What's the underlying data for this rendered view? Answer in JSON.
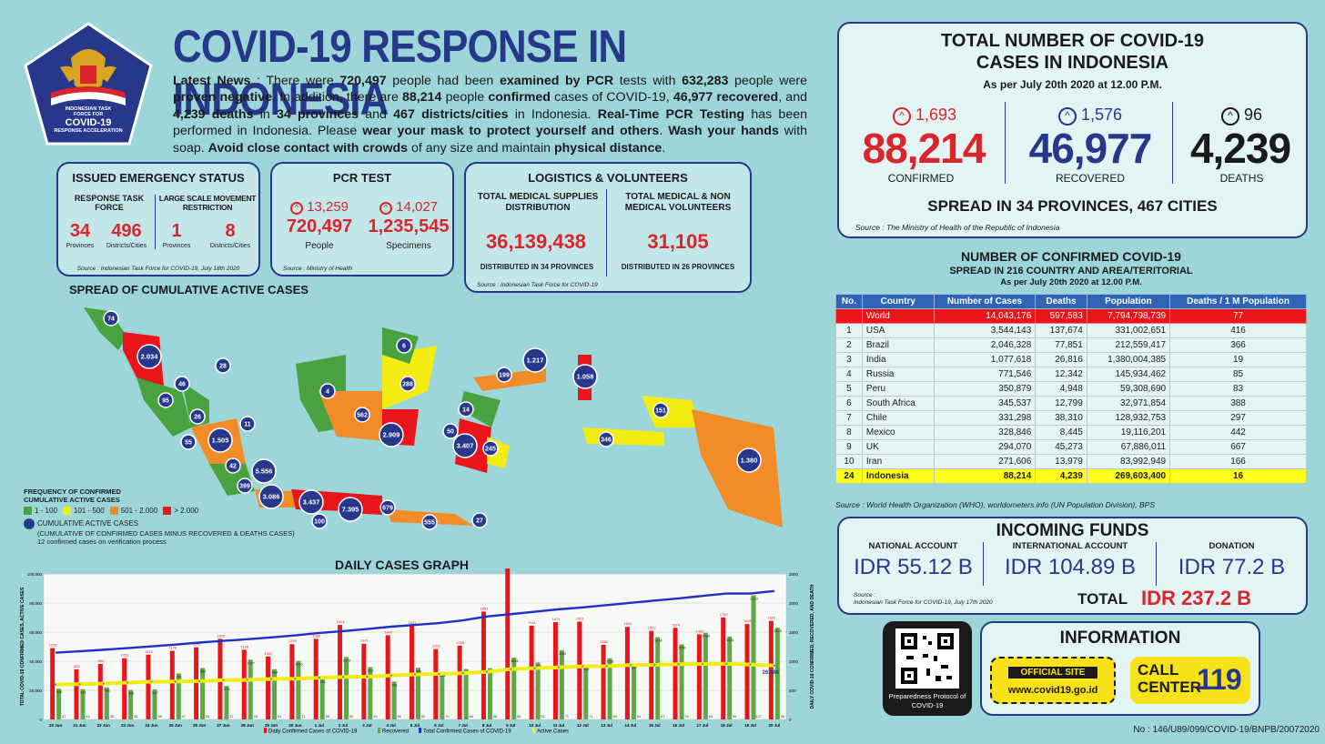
{
  "header": {
    "logo": {
      "line1": "INDONESIAN TASK",
      "line2": "FORCE FOR",
      "line3": "COVID-19",
      "line4": "RESPONSE ACCELERATION"
    },
    "title": "COVID-19 RESPONSE IN INDONESIA",
    "news_label": "Latest News",
    "news_parts": [
      {
        "t": " : There were ",
        "b": false
      },
      {
        "t": "720,497",
        "b": true
      },
      {
        "t": " people had been ",
        "b": false
      },
      {
        "t": "examined by PCR",
        "b": true
      },
      {
        "t": " tests with ",
        "b": false
      },
      {
        "t": "632,283",
        "b": true
      },
      {
        "t": " people were ",
        "b": false
      },
      {
        "t": "proven negative",
        "b": true
      },
      {
        "t": ". In addition, there are ",
        "b": false
      },
      {
        "t": "88,214",
        "b": true
      },
      {
        "t": " people ",
        "b": false
      },
      {
        "t": "confirmed",
        "b": true
      },
      {
        "t": " cases of COVID-19, ",
        "b": false
      },
      {
        "t": "46,977 recovered",
        "b": true
      },
      {
        "t": ", and ",
        "b": false
      },
      {
        "t": "4,239 deaths",
        "b": true
      },
      {
        "t": " in ",
        "b": false
      },
      {
        "t": "34 provinces",
        "b": true
      },
      {
        "t": " and ",
        "b": false
      },
      {
        "t": "467 districts/cities",
        "b": true
      },
      {
        "t": " in Indonesia. ",
        "b": false
      },
      {
        "t": "Real-Time PCR Testing",
        "b": true
      },
      {
        "t": " has been performed in Indonesia. Please ",
        "b": false
      },
      {
        "t": "wear your mask to protect yourself and others",
        "b": true
      },
      {
        "t": ". ",
        "b": false
      },
      {
        "t": "Wash your hands",
        "b": true
      },
      {
        "t": " with soap. ",
        "b": false
      },
      {
        "t": "Avoid close contact with crowds",
        "b": true
      },
      {
        "t": " of any size and maintain ",
        "b": false
      },
      {
        "t": "physical distance",
        "b": true
      },
      {
        "t": ".",
        "b": false
      }
    ]
  },
  "emergency": {
    "title": "ISSUED EMERGENCY STATUS",
    "col1_title": "RESPONSE TASK FORCE",
    "col2_title": "LARGE SCALE MOVEMENT RESTRICTION",
    "v1": "34",
    "l1": "Provinces",
    "v2": "496",
    "l2": "Districts/Cities",
    "v3": "1",
    "l3": "Provinces",
    "v4": "8",
    "l4": "Districts/Cities",
    "source": "Source : Indonesian Task Force for COVID-19, July 18th 2020"
  },
  "pcr": {
    "title": "PCR TEST",
    "inc1": "13,259",
    "inc2": "14,027",
    "v1": "720,497",
    "l1": "People",
    "v2": "1,235,545",
    "l2": "Specimens",
    "source": "Source : Ministry of Health"
  },
  "logistics": {
    "title": "LOGISTICS & VOLUNTEERS",
    "c1_title": "TOTAL MEDICAL SUPPLIES DISTRIBUTION",
    "c1_value": "36,139,438",
    "c1_note": "DISTRIBUTED IN 34 PROVINCES",
    "c2_title": "TOTAL MEDICAL & NON MEDICAL VOLUNTEERS",
    "c2_value": "31,105",
    "c2_note": "DISTRIBUTED IN 26 PROVINCES",
    "source": "Source : Indonesian Task Force for COVID-19"
  },
  "map": {
    "title": "SPREAD OF CUMULATIVE ACTIVE CASES",
    "legend_title": "FREQUENCY OF CONFIRMED CUMULATIVE ACTIVE CASES",
    "legend": [
      {
        "label": "1 - 100",
        "color": "#4aa140"
      },
      {
        "label": "101 - 500",
        "color": "#f2ec13"
      },
      {
        "label": "501 - 2.000",
        "color": "#f28c28"
      },
      {
        "label": "> 2.000",
        "color": "#e8151b"
      }
    ],
    "legend_dot": "CUMULATIVE ACTIVE CASES",
    "legend_dot_note": "(CUMULATIVE OF CONFIRMED CASES MINUS RECOVERED & DEATHS CASES)",
    "legend_note": "12 confirmed cases on verification process",
    "bubbles": [
      "74",
      "2.034",
      "28",
      "46",
      "95",
      "26",
      "11",
      "55",
      "1.505",
      "42",
      "5.556",
      "399",
      "3.086",
      "3.437",
      "100",
      "7.395",
      "679",
      "555",
      "27",
      "6",
      "4",
      "288",
      "562",
      "2.909",
      "199",
      "1.217",
      "1.058",
      "14",
      "50",
      "3.407",
      "245",
      "151",
      "346",
      "1.380"
    ]
  },
  "totals": {
    "title1": "TOTAL NUMBER OF COVID-19",
    "title2": "CASES IN INDONESIA",
    "asof": "As per July 20th 2020 at 12.00 P.M.",
    "confirmed_inc": "1,693",
    "confirmed": "88,214",
    "confirmed_label": "CONFIRMED",
    "recovered_inc": "1,576",
    "recovered": "46,977",
    "recovered_label": "RECOVERED",
    "deaths_inc": "96",
    "deaths": "4,239",
    "deaths_label": "DEATHS",
    "spread": "SPREAD IN 34 PROVINCES, 467 CITIES",
    "source": "Source : The Ministry of Health of the Republic of Indonesia",
    "colors": {
      "confirmed": "#d9252c",
      "recovered": "#27378a",
      "deaths": "#1a1a1a"
    }
  },
  "country_table": {
    "title": "NUMBER OF CONFIRMED COVID-19",
    "subtitle": "SPREAD IN 216 COUNTRY AND AREA/TERITORIAL",
    "asof": "As per July 20th 2020 at 12.00 P.M.",
    "headers": [
      "No.",
      "Country",
      "Number of Cases",
      "Deaths",
      "Population",
      "Deaths / 1 M Population"
    ],
    "rows": [
      [
        "",
        "World",
        "14,043,176",
        "597,583",
        "7,794,798,739",
        "77"
      ],
      [
        "1",
        "USA",
        "3,544,143",
        "137,674",
        "331,002,651",
        "416"
      ],
      [
        "2",
        "Brazil",
        "2,046,328",
        "77,851",
        "212,559,417",
        "366"
      ],
      [
        "3",
        "India",
        "1,077,618",
        "26,816",
        "1,380,004,385",
        "19"
      ],
      [
        "4",
        "Russia",
        "771,546",
        "12,342",
        "145,934,462",
        "85"
      ],
      [
        "5",
        "Peru",
        "350,879",
        "4,948",
        "59,308,690",
        "83"
      ],
      [
        "6",
        "South Africa",
        "345,537",
        "12,799",
        "32,971,854",
        "388"
      ],
      [
        "7",
        "Chile",
        "331,298",
        "38,310",
        "128,932,753",
        "297"
      ],
      [
        "8",
        "Mexico",
        "328,846",
        "8,445",
        "19,116,201",
        "442"
      ],
      [
        "9",
        "UK",
        "294,070",
        "45,273",
        "67,886,011",
        "667"
      ],
      [
        "10",
        "Iran",
        "271,606",
        "13,979",
        "83,992,949",
        "166"
      ],
      [
        "24",
        "Indonesia",
        "88,214",
        "4,239",
        "269,603,400",
        "16"
      ]
    ],
    "source": "Source : World Health Organization (WHO), worldometers.info (UN Population Division), BPS"
  },
  "funds": {
    "title": "INCOMING FUNDS",
    "c1_label": "NATIONAL ACCOUNT",
    "c1_value": "IDR 55.12 B",
    "c2_label": "INTERNATIONAL ACCOUNT",
    "c2_value": "IDR 104.89 B",
    "c3_label": "DONATION",
    "c3_value": "IDR 77.2 B",
    "source1": "Source :",
    "source2": "Indonesian Task Force for COVID-19, July 17th 2020",
    "total_label": "TOTAL",
    "total_value": "IDR 237.2 B"
  },
  "qr": {
    "caption1": "Preparedness Protocol of",
    "caption2": "COVID-19"
  },
  "info": {
    "title": "INFORMATION",
    "site_label": "OFFICIAL SITE",
    "site_url": "www.covid19.go.id",
    "call1": "CALL",
    "call2": "CENTER",
    "call_num": "119"
  },
  "footer": {
    "doc_no": "No : 146/U89/099/COVID-19/BNPB/20072020"
  },
  "chart_data": {
    "type": "bar",
    "title": "DAILY CASES GRAPH",
    "ylabel_left": "TOTAL COVID-19 CONFIRMED CASES, ACTIVE CASES",
    "ylabel_right": "DAILY COVID-19 CONFIRMED, RECOVERED, AND DEATH",
    "ylim_left": [
      0,
      100000
    ],
    "ylim_right": [
      0,
      2500
    ],
    "yticks_left": [
      "0",
      "20,000",
      "40,000",
      "60,000",
      "80,000",
      "100,000"
    ],
    "yticks_right": [
      "0",
      "500",
      "1000",
      "1500",
      "2000",
      "2500"
    ],
    "categories": [
      "20 Jun",
      "21 Jun",
      "22 Jun",
      "23 Jun",
      "24 Jun",
      "25 Jun",
      "26 Jun",
      "27 Jun",
      "28 Jun",
      "29 Jun",
      "30 Jun",
      "1 Jul",
      "2 Jul",
      "3 Jul",
      "4 Jul",
      "5 Jul",
      "6 Jul",
      "7 Jul",
      "8 Jul",
      "9 Jul",
      "10 Jul",
      "11 Jul",
      "12 Jul",
      "13 Jul",
      "14 Jul",
      "15 Jul",
      "16 Jul",
      "17 Jul",
      "18 Jul",
      "19 Jul",
      "20 Jul"
    ],
    "series": [
      {
        "name": "Daily Confirmed Cases of COVID-19",
        "color": "#e8151b",
        "axis": "right",
        "values": [
          1226,
          862,
          954,
          1051,
          1113,
          1178,
          1240,
          1385,
          1198,
          1082,
          1293,
          1385,
          1624,
          1301,
          1447,
          1607,
          1209,
          1268,
          1853,
          2657,
          1611,
          1671,
          1681,
          1282,
          1591,
          1522,
          1574,
          1462,
          1752,
          1639,
          1693
        ]
      },
      {
        "name": "Recovered",
        "color": "#5fa84a",
        "axis": "right",
        "values": [
          530,
          521,
          551,
          506,
          517,
          791,
          884,
          576,
          1027,
          864,
          1006,
          701,
          1072,
          901,
          651,
          886,
          814,
          866,
          880,
          1064,
          978,
          1190,
          919,
          1051,
          947,
          1414,
          1290,
          1489,
          1424,
          2133,
          1576
        ]
      },
      {
        "name": "Total Confirmed Cases of COVID-19",
        "color": "#1f2fc9",
        "axis": "left",
        "values": [
          45891,
          46845,
          47896,
          49009,
          50187,
          51427,
          52812,
          54010,
          55092,
          56385,
          57770,
          59394,
          60695,
          62142,
          63749,
          64958,
          66226,
          68079,
          70736,
          72347,
          74018,
          75699,
          76981,
          78572,
          80094,
          81668,
          83130,
          84882,
          86521,
          86521,
          88214
        ]
      },
      {
        "name": "Active Cases",
        "color": "#f2ec13",
        "axis": "left",
        "values": [
          24000,
          24300,
          24600,
          25300,
          25900,
          26000,
          26300,
          27000,
          27200,
          27800,
          28000,
          28700,
          29200,
          29400,
          30200,
          30900,
          31300,
          31800,
          32700,
          34600,
          35200,
          35800,
          36500,
          36600,
          37400,
          37500,
          38000,
          38100,
          38300,
          37700,
          36998
        ]
      },
      {
        "name": "Deaths",
        "color": "#333333",
        "axis": "right",
        "values": [
          37,
          44,
          35,
          36,
          38,
          47,
          63,
          37,
          34,
          51,
          71,
          58,
          50,
          49,
          55,
          82,
          70,
          68,
          58,
          58,
          52,
          71,
          71,
          66,
          54,
          87,
          76,
          84,
          59,
          127,
          96
        ]
      }
    ],
    "legend": [
      "Daily Confirmed Cases of COVID-19",
      "Recovered",
      "Total Confirmed Cases of COVID-19",
      "Active Cases"
    ]
  }
}
